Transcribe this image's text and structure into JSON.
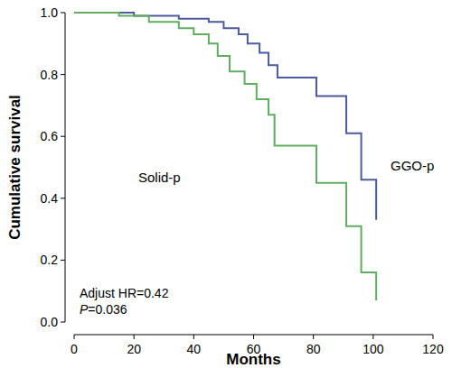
{
  "chart_data": {
    "type": "line",
    "line_style": "step",
    "x_label": "Months",
    "y_label": "Cumulative survival",
    "annotations": [
      "Adjust HR=0.42",
      "P=0.036"
    ],
    "xlim": [
      0,
      120
    ],
    "xticks": [
      0,
      20,
      40,
      60,
      80,
      100,
      120
    ],
    "ylim": [
      0,
      1
    ],
    "yticks": [
      {
        "value": 0,
        "label": "0.0"
      },
      0.2,
      0.4,
      0.6,
      0.8,
      {
        "value": 1,
        "label": "1.0"
      }
    ],
    "grid": false,
    "series": [
      {
        "name": "GGO-p",
        "color": "#4b5b9e",
        "x": [
          0,
          20,
          35,
          45,
          50,
          55,
          58,
          62,
          65,
          68,
          81,
          91,
          96,
          101
        ],
        "values": [
          1.0,
          0.99,
          0.98,
          0.97,
          0.95,
          0.93,
          0.9,
          0.87,
          0.83,
          0.79,
          0.73,
          0.61,
          0.46,
          0.33
        ]
      },
      {
        "name": "Solid-p",
        "color": "#5fae5f",
        "x": [
          0,
          15,
          25,
          35,
          40,
          45,
          48,
          52,
          57,
          61,
          65,
          67,
          81,
          91,
          96,
          101
        ],
        "values": [
          1.0,
          0.99,
          0.97,
          0.95,
          0.93,
          0.9,
          0.86,
          0.81,
          0.77,
          0.72,
          0.67,
          0.57,
          0.45,
          0.31,
          0.16,
          0.07
        ]
      }
    ]
  }
}
